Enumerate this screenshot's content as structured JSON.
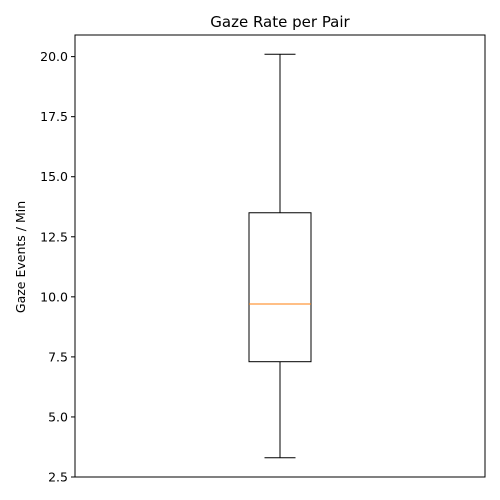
{
  "chart_data": {
    "type": "box",
    "title": "Gaze Rate per Pair",
    "xlabel": "",
    "ylabel": "Gaze Events / Min",
    "ylim": [
      2.5,
      20.9
    ],
    "yticks": [
      "2.5",
      "5.0",
      "7.5",
      "10.0",
      "12.5",
      "15.0",
      "17.5",
      "20.0"
    ],
    "box": {
      "whisker_low": 3.3,
      "q1": 7.3,
      "median": 9.7,
      "q3": 13.5,
      "whisker_high": 20.1
    },
    "colors": {
      "box": "#000000",
      "median": "#ff7f0e"
    },
    "grid": false
  }
}
